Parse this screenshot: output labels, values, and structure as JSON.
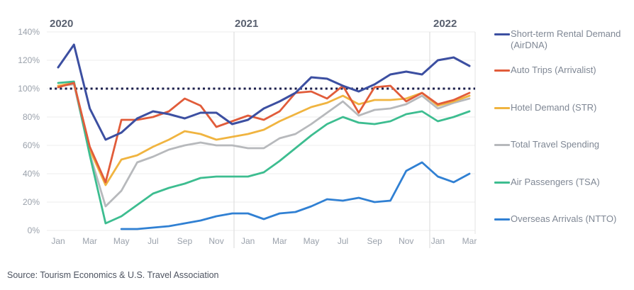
{
  "source": "Source: Tourism Economics & U.S. Travel Association",
  "colors": {
    "grid": "#ededed",
    "year_line": "#d9d9d9",
    "plot_right_border": "#e3e3e3",
    "reference_line": "#1b1e4b",
    "axis_text": "#9aa1ab",
    "year_text": "#5a6170",
    "legend_text": "#7f8794",
    "source_text": "#4d5360",
    "background": "#ffffff"
  },
  "chart_data": {
    "type": "line",
    "title": "",
    "xlabel": "",
    "ylabel": "",
    "ylim": [
      0,
      140
    ],
    "grid": "horizontal-light",
    "legend_position": "right",
    "years": [
      "2020",
      "2021",
      "2022"
    ],
    "x_labels": [
      "Jan 2020",
      "Feb 2020",
      "Mar 2020",
      "Apr 2020",
      "May 2020",
      "Jun 2020",
      "Jul 2020",
      "Aug 2020",
      "Sep 2020",
      "Oct 2020",
      "Nov 2020",
      "Dec 2020",
      "Jan 2021",
      "Feb 2021",
      "Mar 2021",
      "Apr 2021",
      "May 2021",
      "Jun 2021",
      "Jul 2021",
      "Aug 2021",
      "Sep 2021",
      "Oct 2021",
      "Nov 2021",
      "Dec 2021",
      "Jan 2022",
      "Feb 2022",
      "Mar 2022"
    ],
    "x_ticks": [
      {
        "i": 0,
        "label": "Jan"
      },
      {
        "i": 2,
        "label": "Mar"
      },
      {
        "i": 4,
        "label": "May"
      },
      {
        "i": 6,
        "label": "Jul"
      },
      {
        "i": 8,
        "label": "Sep"
      },
      {
        "i": 10,
        "label": "Nov"
      },
      {
        "i": 12,
        "label": "Jan"
      },
      {
        "i": 14,
        "label": "Mar"
      },
      {
        "i": 16,
        "label": "May"
      },
      {
        "i": 18,
        "label": "Jul"
      },
      {
        "i": 20,
        "label": "Sep"
      },
      {
        "i": 22,
        "label": "Nov"
      },
      {
        "i": 24,
        "label": "Jan"
      },
      {
        "i": 26,
        "label": "Mar"
      }
    ],
    "y_ticks": [
      {
        "v": 0,
        "label": "0%"
      },
      {
        "v": 20,
        "label": "20%"
      },
      {
        "v": 40,
        "label": "40%"
      },
      {
        "v": 60,
        "label": "60%"
      },
      {
        "v": 80,
        "label": "80%"
      },
      {
        "v": 100,
        "label": "100%"
      },
      {
        "v": 120,
        "label": "120%"
      },
      {
        "v": 140,
        "label": "140%"
      }
    ],
    "reference_line": {
      "value": 100,
      "style": "dotted",
      "color": "#1b1e4b"
    },
    "series": [
      {
        "name": "Short-term Rental Demand (AirDNA)",
        "color": "#3c4fa1",
        "values": [
          115,
          131,
          86,
          64,
          69,
          79,
          84,
          82,
          79,
          83,
          83,
          75,
          78,
          86,
          91,
          97,
          108,
          107,
          102,
          98,
          103,
          110,
          112,
          110,
          120,
          122,
          116
        ]
      },
      {
        "name": "Auto Trips (Arrivalist)",
        "color": "#e15c3a",
        "values": [
          101,
          104,
          59,
          34,
          78,
          78,
          80,
          84,
          93,
          88,
          73,
          77,
          81,
          78,
          84,
          97,
          98,
          93,
          102,
          83,
          101,
          102,
          91,
          97,
          89,
          92,
          97
        ]
      },
      {
        "name": "Hotel Demand (STR)",
        "color": "#f0b440",
        "values": [
          102,
          104,
          57,
          32,
          50,
          53,
          59,
          64,
          70,
          68,
          64,
          66,
          68,
          71,
          77,
          82,
          87,
          90,
          95,
          89,
          92,
          92,
          93,
          97,
          88,
          91,
          95
        ]
      },
      {
        "name": "Total Travel Spending",
        "color": "#b7b9bc",
        "values": [
          102,
          103,
          54,
          17,
          28,
          48,
          52,
          57,
          60,
          62,
          60,
          60,
          58,
          58,
          65,
          68,
          75,
          83,
          91,
          81,
          85,
          86,
          89,
          95,
          86,
          90,
          93
        ]
      },
      {
        "name": "Air Passengers (TSA)",
        "color": "#3dbd90",
        "values": [
          104,
          105,
          53,
          5,
          10,
          18,
          26,
          30,
          33,
          37,
          38,
          38,
          38,
          41,
          49,
          58,
          67,
          75,
          80,
          76,
          75,
          77,
          82,
          84,
          77,
          80,
          84
        ]
      },
      {
        "name": "Overseas Arrivals (NTTO)",
        "color": "#3080d3",
        "values": [
          null,
          null,
          null,
          null,
          1,
          1,
          2,
          3,
          5,
          7,
          10,
          12,
          12,
          8,
          12,
          13,
          17,
          22,
          21,
          23,
          20,
          21,
          42,
          48,
          38,
          34,
          40
        ]
      }
    ]
  }
}
